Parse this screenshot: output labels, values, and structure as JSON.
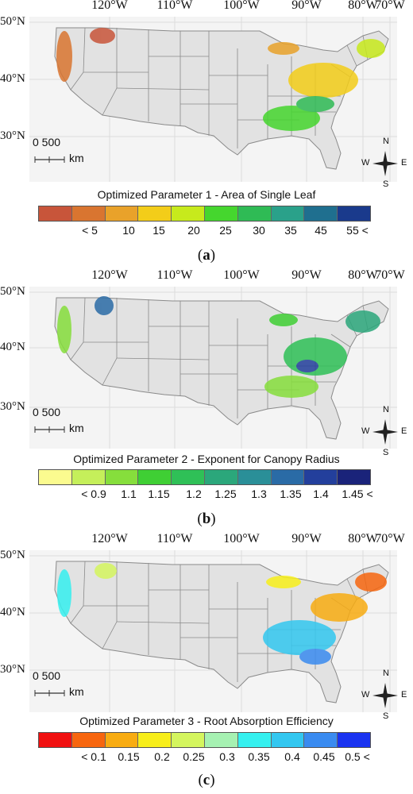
{
  "longitude_labels": [
    "120°W",
    "110°W",
    "100°W",
    "90°W",
    "80°W",
    "70°W"
  ],
  "latitude_labels": [
    "50°N",
    "40°N",
    "30°N"
  ],
  "scale": {
    "values": "0    500",
    "unit": "km"
  },
  "compass": {
    "n": "N",
    "s": "S",
    "e": "E",
    "w": "W"
  },
  "panels": [
    {
      "title": "Optimized Parameter 1 - Area of Single Leaf",
      "label": "a",
      "colors": [
        "#c8553a",
        "#d97530",
        "#e9a22a",
        "#f3cd19",
        "#c7ea1c",
        "#45d62e",
        "#2fbb55",
        "#2aa18a",
        "#1f6f8f",
        "#1a3a8c"
      ],
      "ticks": [
        "< 5",
        "10",
        "15",
        "20",
        "25",
        "30",
        "35",
        "45",
        "55 <"
      ]
    },
    {
      "title": "Optimized Parameter 2 - Exponent for Canopy Radius",
      "label": "b",
      "colors": [
        "#fbfb8f",
        "#c5ef5a",
        "#86de3c",
        "#3fcf34",
        "#2fc057",
        "#2ba77b",
        "#2a8f98",
        "#2a6ba6",
        "#233f9c",
        "#1a237a"
      ],
      "ticks": [
        "< 0.9",
        "1.1",
        "1.15",
        "1.2",
        "1.25",
        "1.3",
        "1.35",
        "1.4",
        "1.45 <"
      ]
    },
    {
      "title": "Optimized Parameter 3 - Root Absorption Efficiency",
      "label": "c",
      "colors": [
        "#f01010",
        "#f7660f",
        "#f8ac12",
        "#f7ee1a",
        "#d4f55e",
        "#a6f1b2",
        "#35f0ef",
        "#33c7f0",
        "#3a8bf0",
        "#1a33f0"
      ],
      "ticks": [
        "< 0.1",
        "0.15",
        "0.2",
        "0.25",
        "0.3",
        "0.35",
        "0.4",
        "0.45",
        "0.5 <"
      ]
    }
  ]
}
